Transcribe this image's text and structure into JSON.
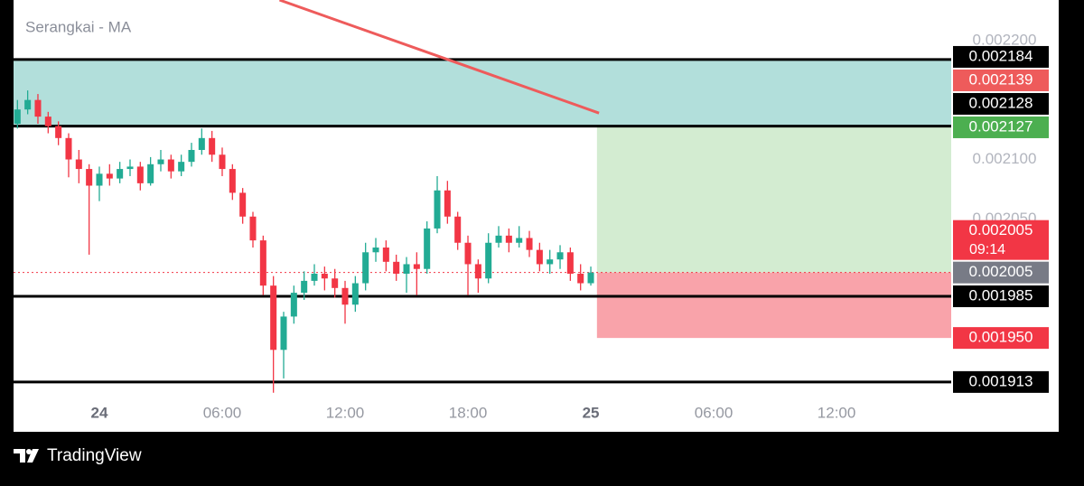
{
  "chart_data": {
    "type": "candlestick",
    "title": "Serangkai - MA",
    "brand": "TradingView",
    "x": [
      -4.0,
      -3.5,
      -3.0,
      -2.5,
      -2.0,
      -1.5,
      -1.0,
      -0.5,
      0.0,
      0.5,
      1.0,
      1.5,
      2.0,
      2.5,
      3.0,
      3.5,
      4.0,
      4.5,
      5.0,
      5.5,
      6.0,
      6.5,
      7.0,
      7.5,
      8.0,
      8.5,
      9.0,
      9.5,
      10.0,
      10.5,
      11.0,
      11.5,
      12.0,
      12.5,
      13.0,
      13.5,
      14.0,
      14.5,
      15.0,
      15.5,
      16.0,
      16.5,
      17.0,
      17.5,
      18.0,
      18.5,
      19.0,
      19.5,
      20.0,
      20.5,
      21.0,
      21.5,
      22.0,
      22.5,
      23.0,
      23.5,
      24.0
    ],
    "open": [
      0.00213,
      0.002142,
      0.00215,
      0.002136,
      0.002128,
      0.002118,
      0.0021,
      0.002092,
      0.002078,
      0.002088,
      0.002084,
      0.002092,
      0.002094,
      0.00208,
      0.002096,
      0.0021,
      0.00209,
      0.002098,
      0.002108,
      0.002118,
      0.002104,
      0.002092,
      0.002072,
      0.002052,
      0.002032,
      0.001994,
      0.00194,
      0.001968,
      0.001988,
      0.001998,
      0.002004,
      0.002,
      0.001992,
      0.001978,
      0.001996,
      0.002022,
      0.002026,
      0.002014,
      0.002004,
      0.002012,
      0.002008,
      0.002042,
      0.002074,
      0.002052,
      0.00203,
      0.002012,
      0.002,
      0.00203,
      0.002036,
      0.00203,
      0.002034,
      0.002024,
      0.002012,
      0.002016,
      0.002022,
      0.002004,
      0.001996
    ],
    "high": [
      0.00215,
      0.002158,
      0.002155,
      0.00214,
      0.002132,
      0.002122,
      0.002108,
      0.002096,
      0.002094,
      0.002096,
      0.002098,
      0.0021,
      0.002098,
      0.002102,
      0.002108,
      0.002104,
      0.002104,
      0.002114,
      0.002126,
      0.002124,
      0.00211,
      0.002096,
      0.002076,
      0.002056,
      0.002036,
      0.002002,
      0.001972,
      0.001994,
      0.002006,
      0.002012,
      0.00201,
      0.002008,
      0.001998,
      0.002002,
      0.00203,
      0.002034,
      0.002032,
      0.00202,
      0.002018,
      0.002022,
      0.002048,
      0.002086,
      0.002082,
      0.002056,
      0.002036,
      0.002016,
      0.002038,
      0.002044,
      0.002042,
      0.002044,
      0.00204,
      0.00203,
      0.002024,
      0.002028,
      0.002026,
      0.002012,
      0.00201
    ],
    "low": [
      0.002126,
      0.002138,
      0.00213,
      0.002122,
      0.002112,
      0.002085,
      0.00208,
      0.00202,
      0.002065,
      0.002078,
      0.00208,
      0.002086,
      0.002074,
      0.002078,
      0.00209,
      0.002084,
      0.002086,
      0.002094,
      0.002104,
      0.002098,
      0.002086,
      0.002066,
      0.002046,
      0.002026,
      0.001986,
      0.001904,
      0.001916,
      0.001962,
      0.001982,
      0.001994,
      0.00199,
      0.001984,
      0.001962,
      0.001972,
      0.00199,
      0.002014,
      0.002006,
      0.001998,
      0.001988,
      0.001986,
      0.002004,
      0.002038,
      0.002046,
      0.002024,
      0.001986,
      0.001988,
      0.001996,
      0.002026,
      0.002022,
      0.002026,
      0.002018,
      0.002006,
      0.002004,
      0.002008,
      0.001998,
      0.00199,
      0.001994
    ],
    "close": [
      0.002142,
      0.00215,
      0.002136,
      0.002128,
      0.002118,
      0.0021,
      0.002092,
      0.002078,
      0.002088,
      0.002084,
      0.002092,
      0.002094,
      0.00208,
      0.002096,
      0.0021,
      0.00209,
      0.002098,
      0.002108,
      0.002118,
      0.002104,
      0.002092,
      0.002072,
      0.002052,
      0.002032,
      0.001994,
      0.00194,
      0.001968,
      0.001988,
      0.001998,
      0.002004,
      0.002,
      0.001992,
      0.001978,
      0.001996,
      0.002022,
      0.002026,
      0.002014,
      0.002004,
      0.002012,
      0.002008,
      0.002042,
      0.002074,
      0.002052,
      0.00203,
      0.002012,
      0.002,
      0.00203,
      0.002036,
      0.00203,
      0.002034,
      0.002024,
      0.002012,
      0.002016,
      0.002022,
      0.002004,
      0.001996,
      0.002005
    ],
    "up_color": "#22ab94",
    "down_color": "#f23645",
    "xlim": [
      -4.19,
      41.6
    ],
    "xticks": [
      {
        "value": 0,
        "label": "24"
      },
      {
        "value": 6,
        "label": "06:00"
      },
      {
        "value": 12,
        "label": "12:00"
      },
      {
        "value": 18,
        "label": "18:00"
      },
      {
        "value": 24,
        "label": "25"
      },
      {
        "value": 30,
        "label": "06:00"
      },
      {
        "value": 36,
        "label": "12:00"
      }
    ],
    "ylim": [
      0.0019,
      0.002234
    ],
    "yticks": [
      {
        "value": 0.0022,
        "label": "0.002200"
      },
      {
        "value": 0.0021,
        "label": "0.002100"
      },
      {
        "value": 0.00205,
        "label": "0.002050"
      }
    ],
    "levels": [
      {
        "value": 0.002184,
        "color": "#000000"
      },
      {
        "value": 0.002128,
        "color": "#000000"
      },
      {
        "value": 0.001985,
        "color": "#000000"
      },
      {
        "value": 0.001913,
        "color": "#000000"
      }
    ],
    "zone_color": "#b2dfdb",
    "ma": {
      "x": [
        8.8,
        24.4
      ],
      "values": [
        0.002234,
        0.002139
      ],
      "color": "#ee5b5b"
    },
    "position": {
      "x_start": 24.3,
      "target": {
        "value": 0.002127,
        "color": "#4caf50"
      },
      "entry": {
        "value": 0.002005,
        "color": "#787b86"
      },
      "stop": {
        "value": 0.00195,
        "label": "0.001950",
        "color": "#f23645"
      },
      "profit_fill": "#d3ecd1",
      "loss_fill": "#f9a3aa"
    },
    "last_price": {
      "value": 0.002005,
      "countdown": "09:14",
      "color": "#f23645"
    }
  }
}
